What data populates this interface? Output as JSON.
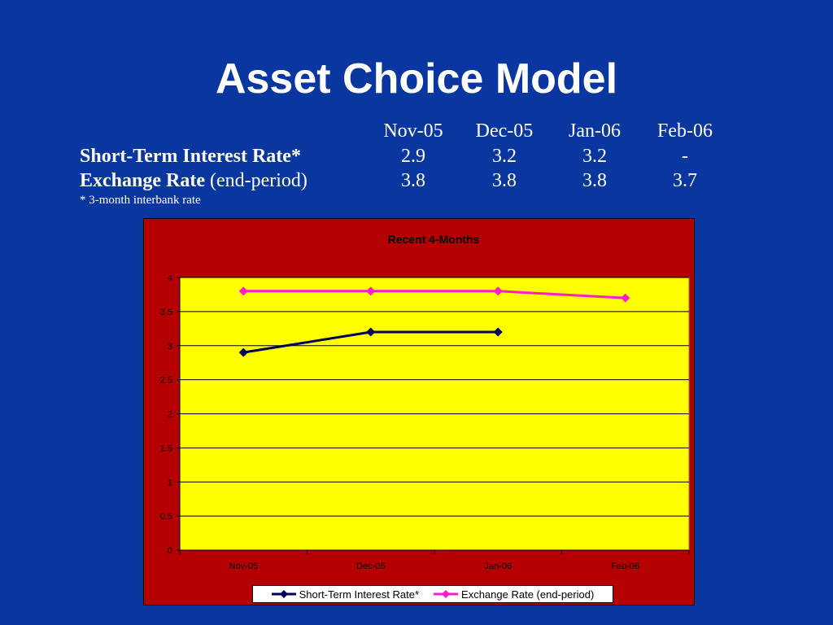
{
  "title": "Asset Choice Model",
  "table": {
    "columns": [
      "Nov-05",
      "Dec-05",
      "Jan-06",
      "Feb-06"
    ],
    "rows": [
      {
        "label_bold": "Short-Term Interest Rate*",
        "label_rest": "",
        "values": [
          "2.9",
          "3.2",
          "3.2",
          "-"
        ]
      },
      {
        "label_bold": "Exchange Rate",
        "label_rest": " (end-period)",
        "values": [
          "3.8",
          "3.8",
          "3.8",
          "3.7"
        ]
      }
    ],
    "footnote": "* 3-month interbank rate"
  },
  "chart_data": {
    "type": "line",
    "title": "Recent 4-Months",
    "categories": [
      "Nov-05",
      "Dec-05",
      "Jan-06",
      "Feb-06"
    ],
    "series": [
      {
        "name": "Short-Term Interest Rate*",
        "values": [
          2.9,
          3.2,
          3.2,
          null
        ],
        "color": "#00005a",
        "marker": "diamond"
      },
      {
        "name": "Exchange Rate (end-period)",
        "values": [
          3.8,
          3.8,
          3.8,
          3.7
        ],
        "color": "#ff1ccc",
        "marker": "diamond"
      }
    ],
    "ylim": [
      0,
      4
    ],
    "yticks": [
      "0",
      "0.5",
      "1",
      "1.5",
      "2",
      "2.5",
      "3",
      "3.5",
      "4"
    ],
    "grid": true,
    "legend": "bottom",
    "colors": {
      "frame": "#b40000",
      "plot": "#ffff00"
    }
  }
}
